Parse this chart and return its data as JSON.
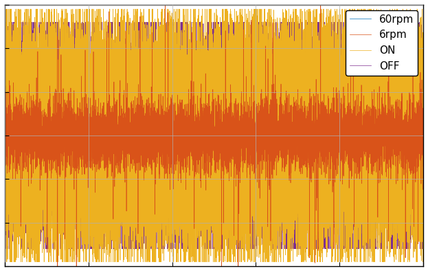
{
  "seed": 42,
  "n_points": 10000,
  "colors": {
    "60rpm": "#0072BD",
    "6rpm": "#D95319",
    "ON": "#EDB120",
    "OFF": "#7E2F8E"
  },
  "legend_labels": [
    "60rpm",
    "6rpm",
    "ON",
    "OFF"
  ],
  "ylim": [
    -1.5,
    1.5
  ],
  "xlim": [
    0,
    10000
  ],
  "figsize": [
    6.23,
    3.94
  ],
  "dpi": 100,
  "linewidth": 0.5,
  "background_color": "#FFFFFF",
  "grid": true,
  "grid_color": "#B0B0B0",
  "legend_fontsize": 11,
  "tick_fontsize": 10
}
